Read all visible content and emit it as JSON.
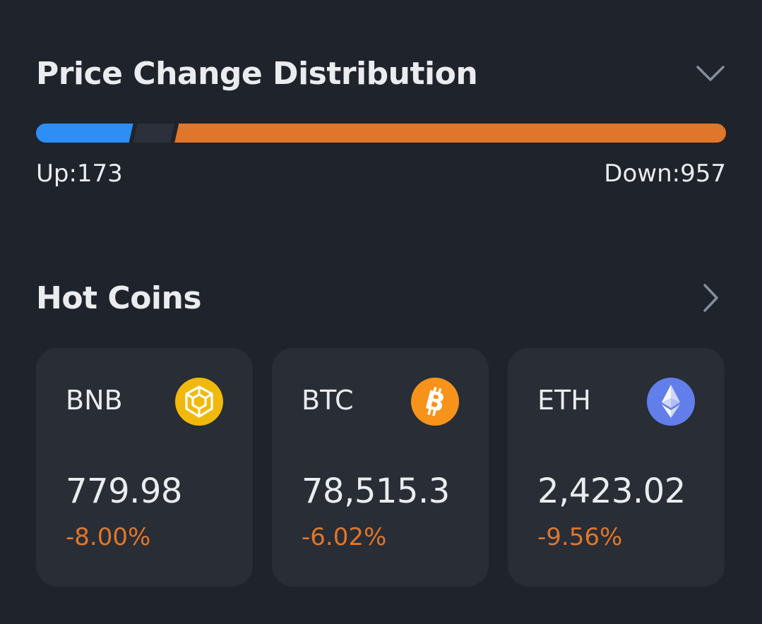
{
  "distribution": {
    "title": "Price Change Distribution",
    "up_label": "Up:173",
    "down_label": "Down:957",
    "up_count": 173,
    "down_count": 957,
    "flat_fraction": 0.06,
    "colors": {
      "up": "#2e8ef5",
      "flat": "#2b303a",
      "down": "#e0762a"
    }
  },
  "hot_coins": {
    "title": "Hot Coins",
    "coins": [
      {
        "symbol": "BNB",
        "price": "779.98",
        "change": "-8.00%",
        "icon": "bnb-icon",
        "icon_color": "#f0b90b"
      },
      {
        "symbol": "BTC",
        "price": "78,515.3",
        "change": "-6.02%",
        "icon": "btc-icon",
        "icon_color": "#f7931a"
      },
      {
        "symbol": "ETH",
        "price": "2,423.02",
        "change": "-9.56%",
        "icon": "eth-icon",
        "icon_color": "#627eea"
      }
    ]
  }
}
